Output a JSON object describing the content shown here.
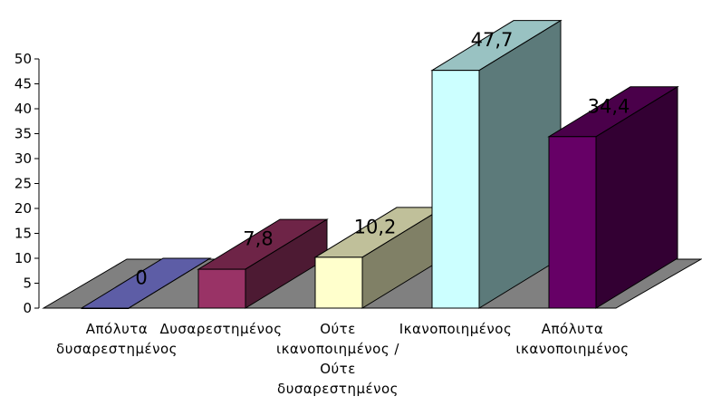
{
  "chart_data": {
    "type": "bar",
    "style": "3d-column",
    "categories": [
      [
        "Απόλυτα",
        "δυσαρεστημένος"
      ],
      [
        "Δυσαρεστημένος"
      ],
      [
        "Ούτε",
        "ικανοποιημένος /",
        "Ούτε",
        "δυσαρεστημένος"
      ],
      [
        "Ικανοποιημένος"
      ],
      [
        "Απόλυτα",
        "ικανοποιημένος"
      ]
    ],
    "values": [
      0,
      7.8,
      10.2,
      47.7,
      34.4
    ],
    "value_labels": [
      "0",
      "7,8",
      "10,2",
      "47,7",
      "34,4"
    ],
    "y_ticks": [
      "0",
      "5",
      "10",
      "15",
      "20",
      "25",
      "30",
      "35",
      "40",
      "45",
      "50"
    ],
    "ylim": [
      0,
      50
    ],
    "title": "",
    "xlabel": "",
    "ylabel": "",
    "grid": false,
    "legend": "none",
    "colors": {
      "floor": "#808080",
      "bar_fronts": [
        "#7777cc",
        "#993366",
        "#ffffcc",
        "#ccffff",
        "#660066"
      ],
      "bar_tops": [
        "#5d5da6",
        "#6e2447",
        "#c0c09a",
        "#99c2c2",
        "#4a004a"
      ],
      "bar_sides": [
        "#4d4d99",
        "#4d1a33",
        "#808066",
        "#5c7a7a",
        "#330033"
      ]
    }
  }
}
